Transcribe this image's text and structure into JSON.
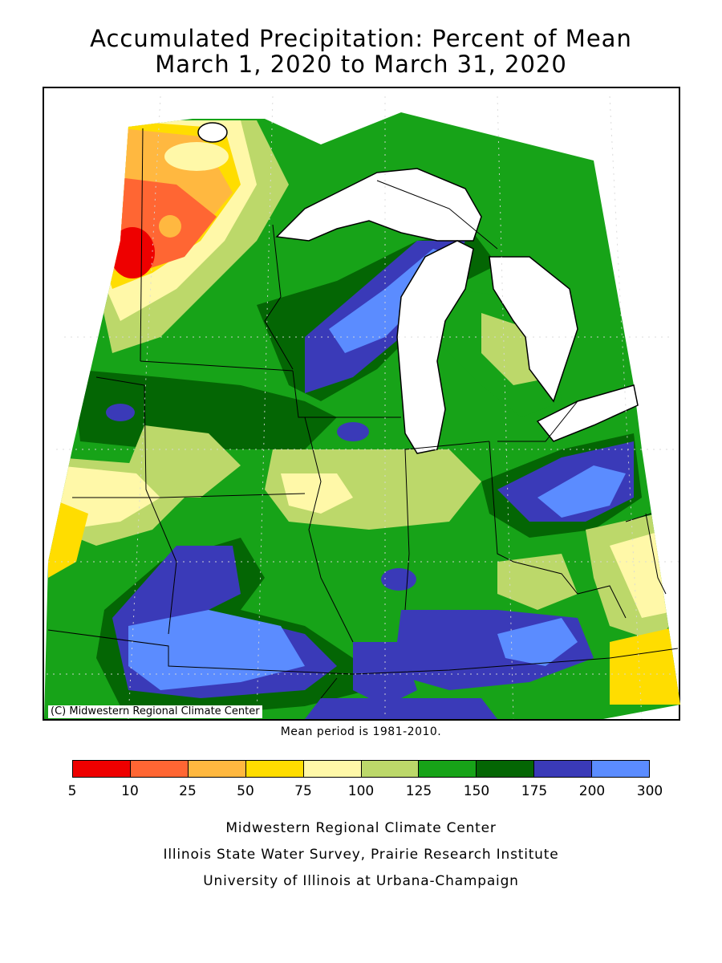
{
  "title_line1": "Accumulated Precipitation: Percent of Mean",
  "title_line2": "March 1, 2020 to March 31, 2020",
  "map_credit": "(C) Midwestern Regional Climate Center",
  "mean_period": "Mean period is 1981-2010.",
  "legend": {
    "colors": [
      "#ee0000",
      "#ff6633",
      "#ffb840",
      "#ffdd00",
      "#fff8a8",
      "#bcd86a",
      "#17a318",
      "#046604",
      "#3a3ab8",
      "#5b8cff"
    ],
    "ticks": [
      "5",
      "10",
      "25",
      "50",
      "75",
      "100",
      "125",
      "150",
      "175",
      "200",
      "300"
    ]
  },
  "footer": {
    "line1": "Midwestern Regional Climate Center",
    "line2": "Illinois State Water Survey, Prairie Research Institute",
    "line3": "University of Illinois at Urbana-Champaign"
  }
}
